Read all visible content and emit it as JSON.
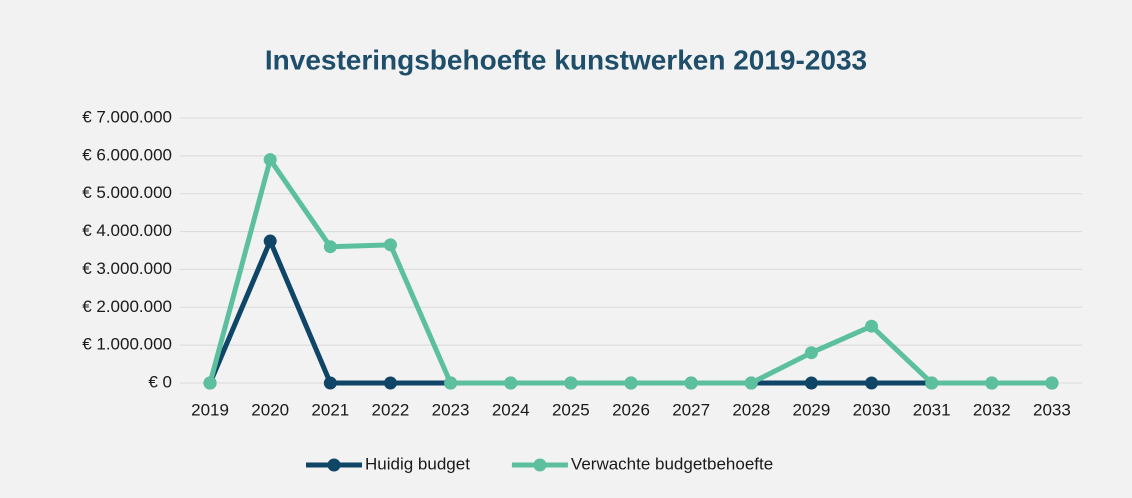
{
  "chart_data": {
    "type": "line",
    "title": "Investeringsbehoefte kunstwerken 2019-2033",
    "categories": [
      "2019",
      "2020",
      "2021",
      "2022",
      "2023",
      "2024",
      "2025",
      "2026",
      "2027",
      "2028",
      "2029",
      "2030",
      "2031",
      "2032",
      "2033"
    ],
    "series": [
      {
        "name": "Huidig budget",
        "color": "#0f4566",
        "values": [
          0,
          3750000,
          0,
          0,
          0,
          0,
          0,
          0,
          0,
          0,
          0,
          0,
          0,
          0,
          0
        ]
      },
      {
        "name": "Verwachte budgetbehoefte",
        "color": "#5cbf9e",
        "values": [
          0,
          5900000,
          3600000,
          3650000,
          0,
          0,
          0,
          0,
          0,
          0,
          800000,
          1500000,
          0,
          0,
          0
        ]
      }
    ],
    "ylim": [
      0,
      7000000
    ],
    "yticks": [
      {
        "value": 0,
        "label": "€ 0"
      },
      {
        "value": 1000000,
        "label": "€ 1.000.000"
      },
      {
        "value": 2000000,
        "label": "€ 2.000.000"
      },
      {
        "value": 3000000,
        "label": "€ 3.000.000"
      },
      {
        "value": 4000000,
        "label": "€ 4.000.000"
      },
      {
        "value": 5000000,
        "label": "€ 5.000.000"
      },
      {
        "value": 6000000,
        "label": "€ 6.000.000"
      },
      {
        "value": 7000000,
        "label": "€ 7.000.000"
      }
    ],
    "grid": true,
    "legend": "bottom"
  }
}
